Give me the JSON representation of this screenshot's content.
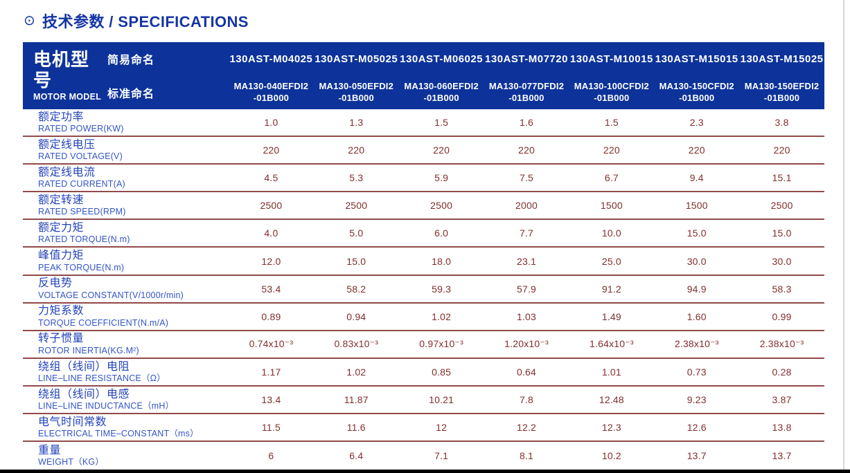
{
  "title": {
    "bullet": "⊙",
    "text": "技术参数 / SPECIFICATIONS"
  },
  "colors": {
    "header_background": "#0d339a",
    "title_blue": "#1535a5",
    "label_blue_zh": "#2343bb",
    "label_blue_en": "#3254c8",
    "value_maroon": "#802e2c",
    "row_divider": "#8f4a48"
  },
  "table": {
    "model_header": {
      "zh": "电机型号",
      "en": "MOTOR MODEL"
    },
    "simple_name_label": "简易命名",
    "standard_name_label": "标准命名",
    "models": [
      {
        "simple": "130AST-M04025",
        "standard_line1": "MA130-040EFDI2",
        "standard_line2": "-01B000"
      },
      {
        "simple": "130AST-M05025",
        "standard_line1": "MA130-050EFDI2",
        "standard_line2": "-01B000"
      },
      {
        "simple": "130AST-M06025",
        "standard_line1": "MA130-060EFDI2",
        "standard_line2": "-01B000"
      },
      {
        "simple": "130AST-M07720",
        "standard_line1": "MA130-077DFDI2",
        "standard_line2": "-01B000"
      },
      {
        "simple": "130AST-M10015",
        "standard_line1": "MA130-100CFDI2",
        "standard_line2": "-01B000"
      },
      {
        "simple": "130AST-M15015",
        "standard_line1": "MA130-150CFDI2",
        "standard_line2": "-01B000"
      },
      {
        "simple": "130AST-M15025",
        "standard_line1": "MA130-150EFDI2",
        "standard_line2": "-01B000"
      }
    ],
    "rows": [
      {
        "zh": "额定功率",
        "en": "RATED POWER(KW)",
        "values": [
          "1.0",
          "1.3",
          "1.5",
          "1.6",
          "1.5",
          "2.3",
          "3.8"
        ]
      },
      {
        "zh": "额定线电压",
        "en": "RATED VOLTAGE(V)",
        "values": [
          "220",
          "220",
          "220",
          "220",
          "220",
          "220",
          "220"
        ]
      },
      {
        "zh": "额定线电流",
        "en": "RATED CURRENT(A)",
        "values": [
          "4.5",
          "5.3",
          "5.9",
          "7.5",
          "6.7",
          "9.4",
          "15.1"
        ]
      },
      {
        "zh": "额定转速",
        "en": "RATED SPEED(RPM)",
        "values": [
          "2500",
          "2500",
          "2500",
          "2000",
          "1500",
          "1500",
          "2500"
        ]
      },
      {
        "zh": "额定力矩",
        "en": "RATED TORQUE(N.m)",
        "values": [
          "4.0",
          "5.0",
          "6.0",
          "7.7",
          "10.0",
          "15.0",
          "15.0"
        ]
      },
      {
        "zh": "峰值力矩",
        "en": "PEAK TORQUE(N.m)",
        "values": [
          "12.0",
          "15.0",
          "18.0",
          "23.1",
          "25.0",
          "30.0",
          "30.0"
        ]
      },
      {
        "zh": "反电势",
        "en": "VOLTAGE CONSTANT(V/1000r/min)",
        "values": [
          "53.4",
          "58.2",
          "59.3",
          "57.9",
          "91.2",
          "94.9",
          "58.3"
        ]
      },
      {
        "zh": "力矩系数",
        "en": "TORQUE COEFFICIENT(N.m/A)",
        "values": [
          "0.89",
          "0.94",
          "1.02",
          "1.03",
          "1.49",
          "1.60",
          "0.99"
        ]
      },
      {
        "zh": "转子惯量",
        "en": "ROTOR INERTIA(KG.M²)",
        "values": [
          "0.74x10⁻³",
          "0.83x10⁻³",
          "0.97x10⁻³",
          "1.20x10⁻³",
          "1.64x10⁻³",
          "2.38x10⁻³",
          "2.38x10⁻³"
        ]
      },
      {
        "zh": "绕组（线间）电阻",
        "en": "LINE–LINE RESISTANCE（Ω）",
        "values": [
          "1.17",
          "1.02",
          "0.85",
          "0.64",
          "1.01",
          "0.73",
          "0.28"
        ]
      },
      {
        "zh": "绕组（线间）电感",
        "en": "LINE–LINE INDUCTANCE（mH）",
        "values": [
          "13.4",
          "11.87",
          "10.21",
          "7.8",
          "12.48",
          "9.23",
          "3.87"
        ]
      },
      {
        "zh": "电气时间常数",
        "en": "ELECTRICAL TIME–CONSTANT（ms）",
        "values": [
          "11.5",
          "11.6",
          "12",
          "12.2",
          "12.3",
          "12.6",
          "13.8"
        ]
      },
      {
        "zh": "重量",
        "en": "WEIGHT（KG）",
        "values": [
          "6",
          "6.4",
          "7.1",
          "8.1",
          "10.2",
          "13.7",
          "13.7"
        ]
      }
    ]
  }
}
